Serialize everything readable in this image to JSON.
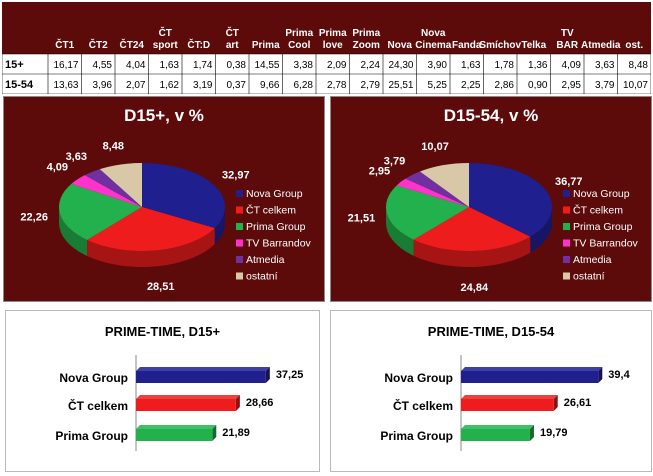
{
  "table": {
    "headers": [
      "ČT1",
      "ČT2",
      "ČT24",
      "ČT sport",
      "ČT:D",
      "ČT art",
      "Prima",
      "Prima Cool",
      "Prima love",
      "Prima Zoom",
      "Nova",
      "Nova Cinema",
      "Fanda",
      "Smíchov",
      "Telka",
      "TV BAR",
      "Atmedia",
      "ost."
    ],
    "rows": [
      {
        "label": "15+",
        "values": [
          "16,17",
          "4,55",
          "4,04",
          "1,63",
          "1,74",
          "0,38",
          "14,55",
          "3,38",
          "2,09",
          "2,24",
          "24,30",
          "3,90",
          "1,63",
          "1,78",
          "1,36",
          "4,09",
          "3,63",
          "8,48"
        ]
      },
      {
        "label": "15-54",
        "values": [
          "13,63",
          "3,96",
          "2,07",
          "1,62",
          "3,19",
          "0,37",
          "9,66",
          "6,28",
          "2,78",
          "2,79",
          "25,51",
          "5,25",
          "2,25",
          "2,86",
          "0,90",
          "2,95",
          "3,79",
          "10,07"
        ]
      }
    ]
  },
  "colors": {
    "table_header_bg": "#5c0a0a",
    "panel_bg": "#5c0a0a",
    "nova": "#1f1f8f",
    "ct": "#ee1c1c",
    "prima": "#22b14c",
    "tvbarrandov": "#ff33cc",
    "atmedia": "#7030a0",
    "ostatni": "#d8c8a8"
  },
  "chart_data": [
    {
      "type": "pie",
      "title": "D15+, v %",
      "series": [
        {
          "name": "Nova Group",
          "value": 32.97,
          "label": "32,97",
          "color": "#1f1f8f"
        },
        {
          "name": "ČT celkem",
          "value": 28.51,
          "label": "28,51",
          "color": "#ee1c1c"
        },
        {
          "name": "Prima Group",
          "value": 22.26,
          "label": "22,26",
          "color": "#22b14c"
        },
        {
          "name": "TV Barrandov",
          "value": 4.09,
          "label": "4,09",
          "color": "#ff33cc"
        },
        {
          "name": "Atmedia",
          "value": 3.63,
          "label": "3,63",
          "color": "#7030a0"
        },
        {
          "name": "ostatní",
          "value": 8.48,
          "label": "8,48",
          "color": "#d8c8a8"
        }
      ],
      "legend": "right"
    },
    {
      "type": "pie",
      "title": "D15-54, v %",
      "series": [
        {
          "name": "Nova Group",
          "value": 36.77,
          "label": "36,77",
          "color": "#1f1f8f"
        },
        {
          "name": "ČT celkem",
          "value": 24.84,
          "label": "24,84",
          "color": "#ee1c1c"
        },
        {
          "name": "Prima Group",
          "value": 21.51,
          "label": "21,51",
          "color": "#22b14c"
        },
        {
          "name": "TV Barrandov",
          "value": 2.95,
          "label": "2,95",
          "color": "#ff33cc"
        },
        {
          "name": "Atmedia",
          "value": 3.79,
          "label": "3,79",
          "color": "#7030a0"
        },
        {
          "name": "ostatní",
          "value": 10.07,
          "label": "10,07",
          "color": "#d8c8a8"
        }
      ],
      "legend": "right"
    },
    {
      "type": "bar",
      "orientation": "horizontal",
      "title": "PRIME-TIME, D15+",
      "categories": [
        "Nova Group",
        "ČT celkem",
        "Prima Group"
      ],
      "values": [
        37.25,
        28.66,
        21.89
      ],
      "value_labels": [
        "37,25",
        "28,66",
        "21,89"
      ],
      "colors": [
        "#1f1f8f",
        "#ee1c1c",
        "#22b14c"
      ],
      "xlim": [
        0,
        40
      ]
    },
    {
      "type": "bar",
      "orientation": "horizontal",
      "title": "PRIME-TIME, D15-54",
      "categories": [
        "Nova Group",
        "ČT celkem",
        "Prima Group"
      ],
      "values": [
        39.4,
        26.61,
        19.79
      ],
      "value_labels": [
        "39,4",
        "26,61",
        "19,79"
      ],
      "colors": [
        "#1f1f8f",
        "#ee1c1c",
        "#22b14c"
      ],
      "xlim": [
        0,
        40
      ]
    }
  ]
}
